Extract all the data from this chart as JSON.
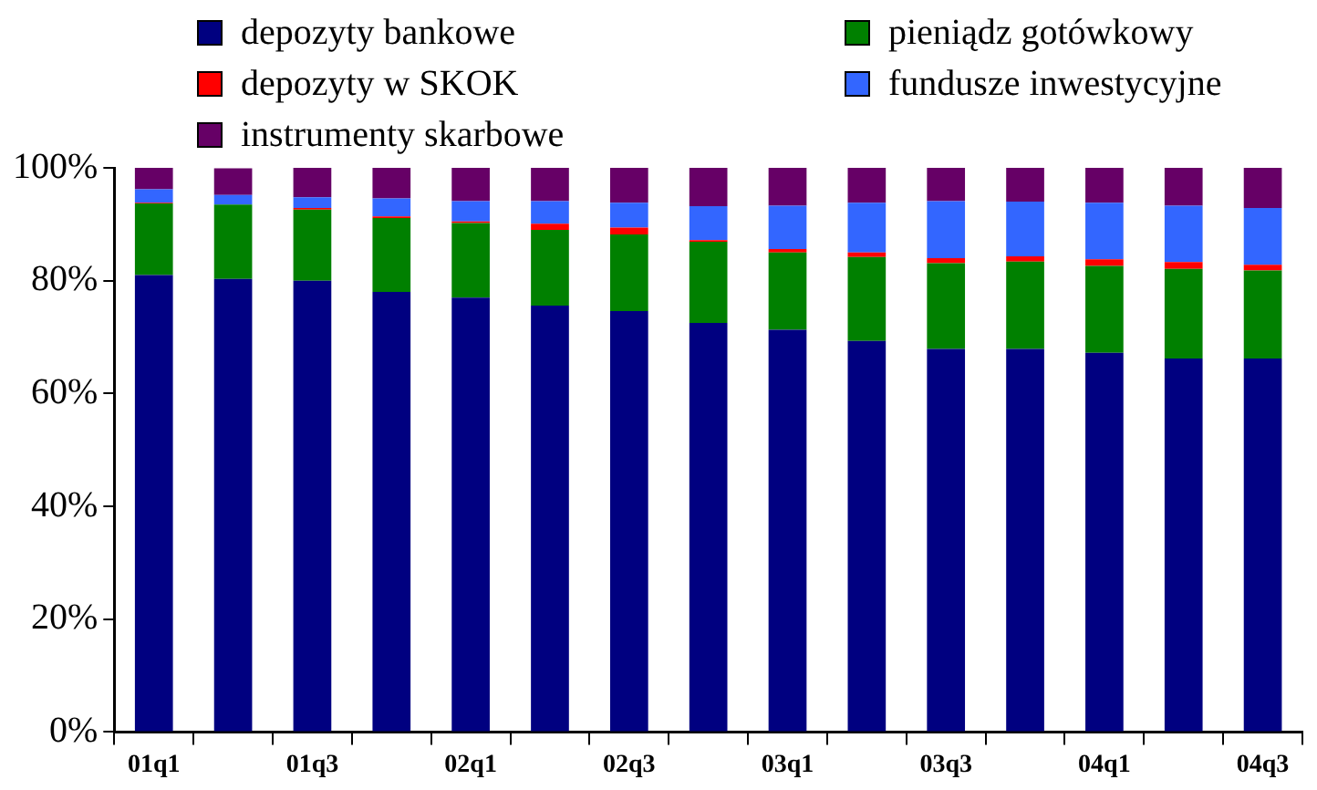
{
  "chart_data": {
    "type": "bar",
    "stacked": true,
    "legend": "top",
    "grid": false,
    "categories": [
      "01q1",
      null,
      "01q3",
      null,
      "02q1",
      null,
      "02q3",
      null,
      "03q1",
      null,
      "03q3",
      null,
      "04q1",
      null,
      "04q3"
    ],
    "ylim": [
      0,
      100
    ],
    "yticks": [
      {
        "value": 0,
        "label": "0%"
      },
      {
        "value": 20,
        "label": "20%"
      },
      {
        "value": 40,
        "label": "40%"
      },
      {
        "value": 60,
        "label": "60%"
      },
      {
        "value": 80,
        "label": "80%"
      },
      {
        "value": 100,
        "label": "100%"
      }
    ],
    "series": [
      {
        "name": "depozyty bankowe",
        "color": "#000080",
        "values": [
          81.0,
          80.3,
          80.0,
          78.0,
          77.0,
          75.6,
          74.6,
          72.5,
          71.3,
          69.3,
          67.9,
          67.9,
          67.2,
          66.2,
          66.2
        ]
      },
      {
        "name": "pieniądz gotówkowy",
        "color": "#008000",
        "values": [
          12.7,
          13.2,
          12.6,
          13.1,
          13.2,
          13.4,
          13.6,
          14.4,
          13.7,
          14.9,
          15.2,
          15.5,
          15.4,
          15.9,
          15.6
        ]
      },
      {
        "name": "depozyty w SKOK",
        "color": "#ff0000",
        "values": [
          0.1,
          null,
          0.3,
          0.3,
          0.3,
          1.1,
          1.2,
          0.3,
          0.6,
          0.8,
          0.9,
          0.9,
          1.2,
          1.2,
          1.0
        ]
      },
      {
        "name": "fundusze inwestycyjne",
        "color": "#3366ff",
        "values": [
          2.4,
          1.7,
          1.9,
          3.2,
          3.6,
          4.0,
          4.4,
          6.0,
          7.7,
          8.8,
          10.1,
          9.7,
          10.0,
          10.0,
          10.1
        ]
      },
      {
        "name": "instrumenty skarbowe",
        "color": "#660066",
        "values": [
          3.8,
          4.7,
          5.2,
          5.4,
          5.9,
          5.9,
          6.2,
          6.8,
          6.7,
          6.2,
          5.9,
          6.0,
          6.2,
          6.7,
          7.1
        ]
      }
    ]
  }
}
